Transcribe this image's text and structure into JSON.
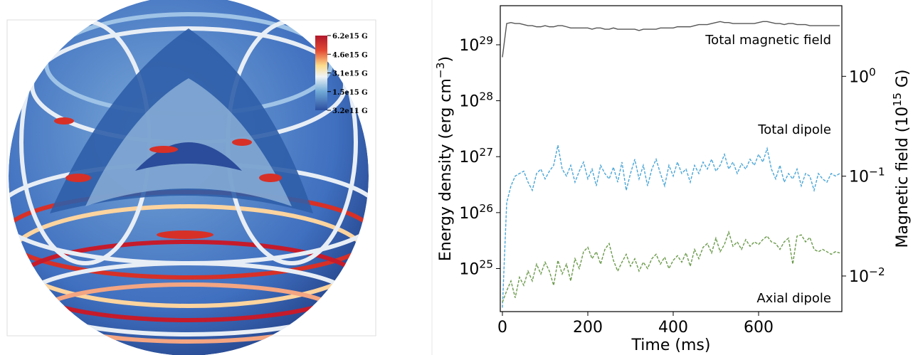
{
  "render_colorbar": {
    "labels": [
      "6.2e15 G",
      "4.6e15 G",
      "3.1e15 G",
      "1.5e15 G",
      "3.2e11 G"
    ]
  },
  "chart_data": {
    "type": "line",
    "xlabel": "Time (ms)",
    "ylabel": "Energy density (erg cm^{−3})",
    "y2label": "Magnetic field (10^{15} G)",
    "yscale": "log",
    "y2scale": "log",
    "xlim": [
      -5,
      795
    ],
    "xticks": [
      0,
      200,
      400,
      600
    ],
    "ylim": [
      1.7e+24,
      5e+29
    ],
    "yticks": [
      {
        "value": 1e+25,
        "label": "10^{25}"
      },
      {
        "value": 1e+26,
        "label": "10^{26}"
      },
      {
        "value": 1e+27,
        "label": "10^{27}"
      },
      {
        "value": 1e+28,
        "label": "10^{28}"
      },
      {
        "value": 1e+29,
        "label": "10^{29}"
      }
    ],
    "y2lim": [
      0.0044,
      5.1
    ],
    "y2ticks": [
      {
        "value": 0.01,
        "label": "10^{−2}"
      },
      {
        "value": 0.1,
        "label": "10^{−1}"
      },
      {
        "value": 1,
        "label": "10^{0}"
      }
    ],
    "annotations": [
      "Total magnetic field",
      "Total dipole",
      "Axial dipole"
    ],
    "x": [
      0,
      10,
      20,
      30,
      40,
      50,
      60,
      70,
      80,
      90,
      100,
      110,
      120,
      130,
      140,
      150,
      160,
      170,
      180,
      190,
      200,
      210,
      220,
      230,
      240,
      250,
      260,
      270,
      280,
      290,
      300,
      310,
      320,
      330,
      340,
      350,
      360,
      370,
      380,
      390,
      400,
      410,
      420,
      430,
      440,
      450,
      460,
      470,
      480,
      490,
      500,
      510,
      520,
      530,
      540,
      550,
      560,
      570,
      580,
      590,
      600,
      610,
      620,
      630,
      640,
      650,
      660,
      670,
      680,
      690,
      700,
      710,
      720,
      730,
      740,
      750,
      760,
      770,
      780,
      790
    ],
    "series": [
      {
        "color": "#555555",
        "dash": false,
        "values": [
          6e+28,
          2.4e+29,
          2.5e+29,
          2.4e+29,
          2.4e+29,
          2.3e+29,
          2.2e+29,
          2.2e+29,
          2.1e+29,
          2.1e+29,
          2.2e+29,
          2.1e+29,
          2.1e+29,
          2.2e+29,
          2.2e+29,
          2.1e+29,
          2e+29,
          2e+29,
          2e+29,
          2e+29,
          2e+29,
          1.9e+29,
          2e+29,
          2e+29,
          1.9e+29,
          1.9e+29,
          2e+29,
          1.9e+29,
          1.9e+29,
          1.9e+29,
          1.9e+29,
          1.9e+29,
          1.8e+29,
          1.9e+29,
          1.9e+29,
          1.9e+29,
          1.9e+29,
          2e+29,
          2e+29,
          2e+29,
          2e+29,
          2.1e+29,
          2.1e+29,
          2.1e+29,
          2.1e+29,
          2.2e+29,
          2.3e+29,
          2.3e+29,
          2.3e+29,
          2.4e+29,
          2.5e+29,
          2.6e+29,
          2.5e+29,
          2.5e+29,
          2.4e+29,
          2.4e+29,
          2.4e+29,
          2.4e+29,
          2.4e+29,
          2.4e+29,
          2.5e+29,
          2.6e+29,
          2.6e+29,
          2.5e+29,
          2.4e+29,
          2.4e+29,
          2.3e+29,
          2.4e+29,
          2.4e+29,
          2.3e+29,
          2.3e+29,
          2.3e+29,
          2.2e+29,
          2.2e+29,
          2.2e+29,
          2.2e+29,
          2.2e+29,
          2.2e+29,
          2.2e+29,
          2.2e+29
        ]
      },
      {
        "color": "#4aa6d8",
        "dash": true,
        "values": [
          2e+24,
          1.5e+26,
          3e+26,
          4.5e+26,
          5e+26,
          5.5e+26,
          3.5e+26,
          2.5e+26,
          5e+26,
          6e+26,
          4e+26,
          5.5e+26,
          7e+26,
          1.6e+27,
          6e+26,
          4.5e+26,
          7e+26,
          3.5e+26,
          5.5e+26,
          8e+26,
          4e+26,
          6e+26,
          3e+26,
          7e+26,
          5e+26,
          4e+26,
          6.5e+26,
          3.5e+26,
          8e+26,
          2.5e+26,
          5e+26,
          9e+26,
          4e+26,
          7e+26,
          3e+26,
          6e+26,
          9e+26,
          5e+26,
          3e+26,
          7e+26,
          4.5e+26,
          8e+26,
          5e+26,
          6e+26,
          3.5e+26,
          7e+26,
          5e+26,
          8e+26,
          6e+26,
          9e+26,
          5.5e+26,
          7e+26,
          1.1e+27,
          6e+26,
          8e+26,
          5e+26,
          7.5e+26,
          6e+26,
          9e+26,
          7e+26,
          1.1e+27,
          8e+26,
          1.4e+27,
          6e+26,
          4e+26,
          7e+26,
          3.5e+26,
          5e+26,
          4e+26,
          6e+26,
          3e+26,
          5e+26,
          4.5e+26,
          2.5e+26,
          5e+26,
          4e+26,
          3.5e+26,
          5e+26,
          4.5e+26,
          5e+26
        ]
      },
      {
        "color": "#6a9a4a",
        "dash": true,
        "values": [
          2.5e+24,
          4e+24,
          6e+24,
          3e+24,
          7e+24,
          5e+24,
          9e+24,
          6e+24,
          1.2e+25,
          8e+24,
          1.3e+25,
          9e+24,
          5e+24,
          1.4e+25,
          8e+24,
          1.2e+25,
          6e+24,
          1.5e+25,
          1e+25,
          2e+25,
          2.4e+25,
          1.5e+25,
          2e+25,
          1.2e+25,
          2.2e+25,
          2.8e+25,
          1.4e+25,
          9e+24,
          1.3e+25,
          1.8e+25,
          1.1e+25,
          1.5e+25,
          9e+24,
          1.3e+25,
          1e+25,
          1.5e+25,
          1.8e+25,
          1.2e+25,
          1.6e+25,
          1e+25,
          1.4e+25,
          1.7e+25,
          1.3e+25,
          1.9e+25,
          1.1e+25,
          2.2e+25,
          1.5e+25,
          2.4e+25,
          2.8e+25,
          1.9e+25,
          3.5e+25,
          2e+25,
          2.7e+25,
          4.5e+25,
          2.5e+25,
          3e+25,
          2.2e+25,
          3.3e+25,
          2.5e+25,
          3e+25,
          2.7e+25,
          3.3e+25,
          3.8e+25,
          3e+25,
          2.8e+25,
          2.2e+25,
          3e+25,
          3.5e+25,
          1.2e+25,
          3.8e+25,
          4e+25,
          3e+25,
          3.6e+25,
          2.2e+25,
          2e+25,
          2.2e+25,
          2e+25,
          1.8e+25,
          2e+25,
          1.9e+25
        ]
      }
    ]
  }
}
